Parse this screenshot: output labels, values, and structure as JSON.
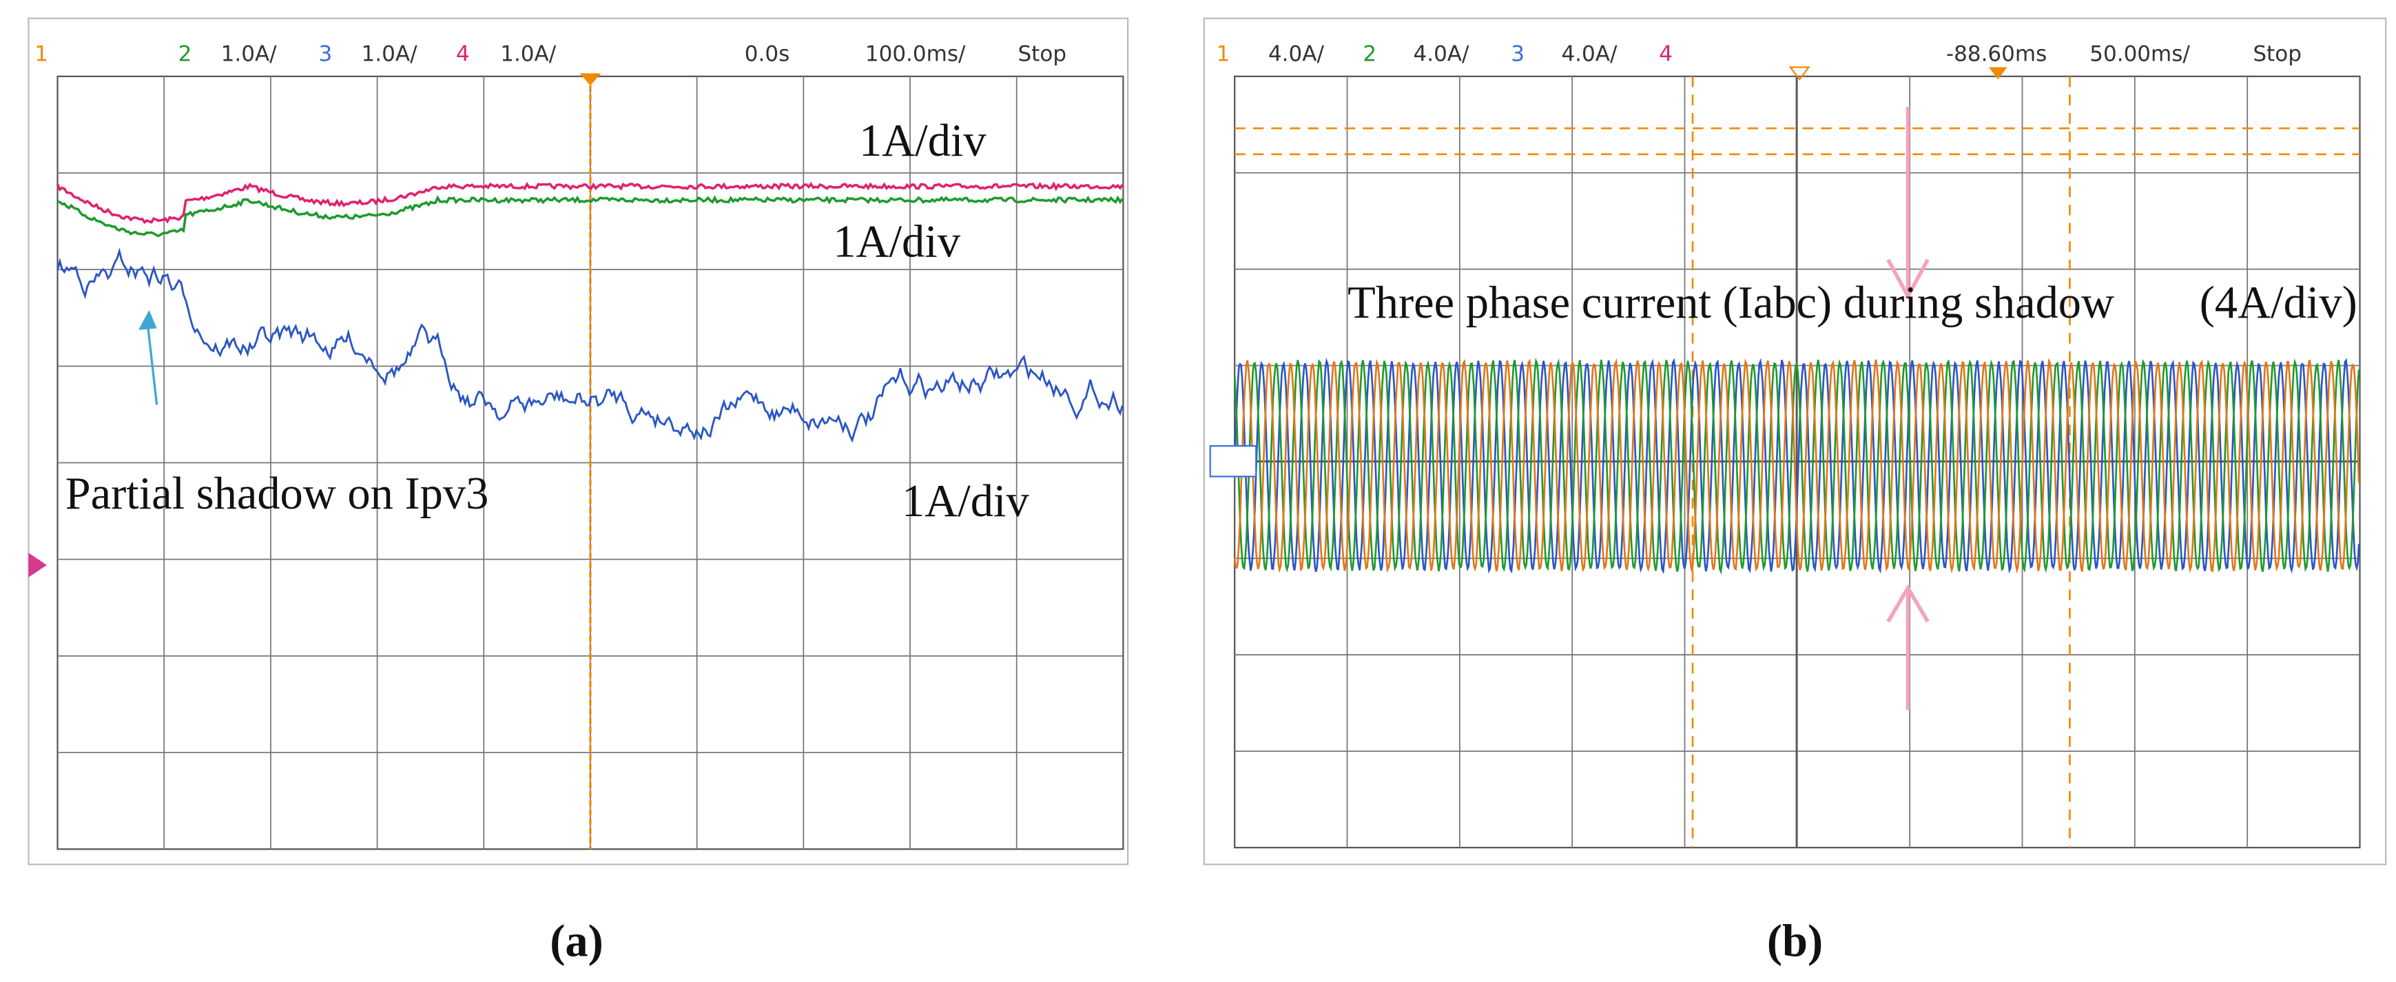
{
  "panels": [
    {
      "header": [
        "1",
        "2",
        "1.0A/",
        "3",
        "1.0A/",
        "4",
        "1.0A/",
        "0.0s",
        "100.0ms/",
        "Stop"
      ],
      "annotations": [
        "1A/div",
        "1A/div",
        "Partial shadow on Ipv3",
        "1A/div"
      ],
      "caption": "(a)"
    },
    {
      "header": [
        "1",
        "4.0A/",
        "2",
        "4.0A/",
        "3",
        "4.0A/",
        "4",
        "-88.60ms",
        "50.00ms/",
        "Stop"
      ],
      "annotations": [
        "Three phase current (Iabc)  during shadow",
        "(4A/div)"
      ],
      "caption": "(b)"
    }
  ]
}
